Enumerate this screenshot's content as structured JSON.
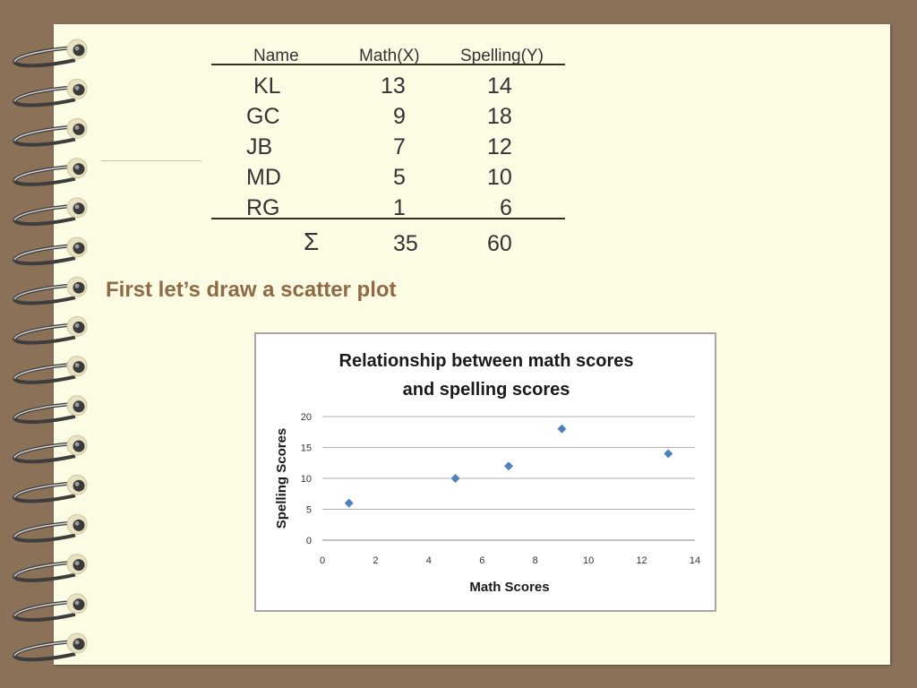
{
  "table": {
    "headers": [
      "Name",
      "Math(X)",
      "Spelling(Y)"
    ],
    "rows": [
      {
        "name": "KL",
        "math": "13",
        "spelling": "14"
      },
      {
        "name": "GC",
        "math": "9",
        "spelling": "18"
      },
      {
        "name": "JB",
        "math": "7",
        "spelling": "12"
      },
      {
        "name": "MD",
        "math": "5",
        "spelling": "10"
      },
      {
        "name": "RG",
        "math": "1",
        "spelling": "6"
      }
    ],
    "sum_symbol": "Σ",
    "sum_math": "35",
    "sum_spelling": "60"
  },
  "subtitle": "First let’s draw a scatter plot",
  "colors": {
    "background": "#8b7158",
    "paper": "#fcfbe4",
    "subtitle": "#8f6a44",
    "marker": "#4f81bd"
  },
  "chart_data": {
    "type": "scatter",
    "title_lines": [
      "Relationship between math scores",
      "and spelling scores"
    ],
    "xlabel": "Math Scores",
    "ylabel": "Spelling Scores",
    "xlim": [
      0,
      14
    ],
    "ylim": [
      0,
      20
    ],
    "x_ticks": [
      "0",
      "2",
      "4",
      "6",
      "8",
      "10",
      "12",
      "14"
    ],
    "y_ticks": [
      "0",
      "5",
      "10",
      "15",
      "20"
    ],
    "grid": "horizontal",
    "legend": "none",
    "marker": "diamond",
    "points": [
      {
        "x": 1,
        "y": 6
      },
      {
        "x": 5,
        "y": 10
      },
      {
        "x": 7,
        "y": 12
      },
      {
        "x": 9,
        "y": 18
      },
      {
        "x": 13,
        "y": 14
      }
    ]
  }
}
